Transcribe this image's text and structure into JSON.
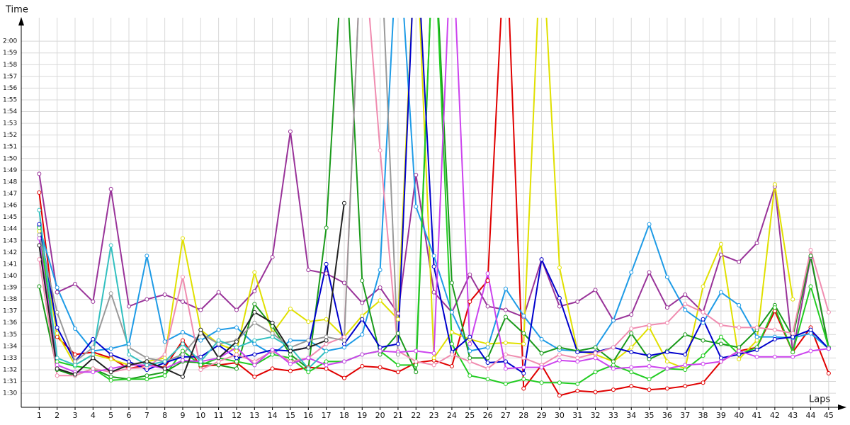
{
  "chart_data": {
    "type": "line",
    "ylabel": "Time",
    "xlabel": "Laps",
    "xlim": [
      0,
      45.4
    ],
    "ylim": [
      88.8,
      122
    ],
    "grid": true,
    "x": [
      1,
      2,
      3,
      4,
      5,
      6,
      7,
      8,
      9,
      10,
      11,
      12,
      13,
      14,
      15,
      16,
      17,
      18,
      19,
      20,
      21,
      22,
      23,
      24,
      25,
      26,
      27,
      28,
      29,
      30,
      31,
      32,
      33,
      34,
      35,
      36,
      37,
      38,
      39,
      40,
      41,
      42,
      43,
      44,
      45
    ],
    "xticks": [
      1,
      2,
      3,
      4,
      5,
      6,
      7,
      8,
      9,
      10,
      11,
      12,
      13,
      14,
      15,
      16,
      17,
      18,
      19,
      20,
      21,
      22,
      23,
      24,
      25,
      26,
      27,
      28,
      29,
      30,
      31,
      32,
      33,
      34,
      35,
      36,
      37,
      38,
      39,
      40,
      41,
      42,
      43,
      44,
      45
    ],
    "yticks": [
      {
        "value": 90,
        "label": "1:30"
      },
      {
        "value": 91,
        "label": "1:31"
      },
      {
        "value": 92,
        "label": "1:32"
      },
      {
        "value": 93,
        "label": "1:33"
      },
      {
        "value": 94,
        "label": "1:34"
      },
      {
        "value": 95,
        "label": "1:35"
      },
      {
        "value": 96,
        "label": "1:36"
      },
      {
        "value": 97,
        "label": "1:37"
      },
      {
        "value": 98,
        "label": "1:38"
      },
      {
        "value": 99,
        "label": "1:39"
      },
      {
        "value": 100,
        "label": "1:40"
      },
      {
        "value": 101,
        "label": "1:41"
      },
      {
        "value": 102,
        "label": "1:42"
      },
      {
        "value": 103,
        "label": "1:43"
      },
      {
        "value": 104,
        "label": "1:44"
      },
      {
        "value": 105,
        "label": "1:45"
      },
      {
        "value": 106,
        "label": "1:46"
      },
      {
        "value": 107,
        "label": "1:47"
      },
      {
        "value": 108,
        "label": "1:48"
      },
      {
        "value": 109,
        "label": "1:49"
      },
      {
        "value": 110,
        "label": "1:50"
      },
      {
        "value": 111,
        "label": "1:51"
      },
      {
        "value": 112,
        "label": "1:52"
      },
      {
        "value": 113,
        "label": "1:53"
      },
      {
        "value": 114,
        "label": "1:54"
      },
      {
        "value": 115,
        "label": "1:55"
      },
      {
        "value": 116,
        "label": "1:56"
      },
      {
        "value": 117,
        "label": "1:57"
      },
      {
        "value": 118,
        "label": "1:58"
      },
      {
        "value": 119,
        "label": "1:59"
      },
      {
        "value": 120,
        "label": "2:00"
      }
    ],
    "series": [
      {
        "color": "#993399",
        "values": [
          108.7,
          98.6,
          99.3,
          97.8,
          107.4,
          97.4,
          98,
          98.4,
          97.8,
          97.1,
          98.6,
          97.1,
          98.7,
          101.6,
          112.3,
          100.5,
          100.2,
          99.4,
          97.7,
          99,
          96.8,
          108.6,
          98.6,
          96.9,
          100.1,
          97.4,
          97.1,
          96.5,
          101.4,
          97.4,
          97.8,
          98.8,
          96.2,
          96.7,
          100.3,
          97.3,
          98.4,
          96.9,
          101.8,
          101.2,
          102.8,
          107.6,
          93.5,
          101.6,
          93.8
        ]
      },
      {
        "color": "#e00000",
        "values": [
          107.1,
          94.8,
          93.3,
          93.5,
          93,
          92.1,
          92.4,
          92.2,
          94.5,
          92.3,
          92.4,
          92.6,
          91.4,
          92.1,
          91.9,
          92.2,
          92.1,
          91.3,
          92.3,
          92.2,
          91.8,
          92.6,
          92.8,
          92.3,
          97.8,
          99.6,
          130,
          90.4,
          92.4,
          89.8,
          90.2,
          90.1,
          90.3,
          90.6,
          90.3,
          90.4,
          90.6,
          90.9,
          92.7,
          93.6,
          93.9,
          97,
          93.5,
          95.6,
          91.7
        ]
      },
      {
        "color": "#e0e000",
        "values": [
          103.8,
          95.1,
          92.4,
          93.3,
          92.9,
          92.4,
          92.7,
          93,
          103.2,
          95.4,
          94.2,
          93.6,
          100.3,
          95.1,
          97.2,
          96.1,
          96.3,
          94.8,
          96.6,
          97.9,
          96.3,
          130,
          93,
          95.2,
          94.6,
          94.2,
          94.3,
          94.2,
          130,
          100.7,
          93.6,
          93.3,
          92.7,
          93.9,
          95.6,
          92.7,
          92.1,
          99.1,
          102.7,
          92.9,
          94.5,
          107.8,
          98,
          null,
          null
        ]
      },
      {
        "color": "#1e9be6",
        "values": [
          104.2,
          99,
          95.5,
          93.6,
          93.8,
          94.2,
          101.7,
          94.4,
          95.2,
          94.5,
          95.4,
          95.6,
          94.2,
          93.3,
          94.5,
          94.5,
          93.6,
          93.9,
          95,
          100.5,
          130,
          105.9,
          101.7,
          96.9,
          93.6,
          93.9,
          98.9,
          96.6,
          94.6,
          93.7,
          93.6,
          93.9,
          96.2,
          100.3,
          104.4,
          99.9,
          97.1,
          96,
          98.6,
          97.5,
          94.8,
          94.8,
          94.7,
          95.1,
          93.8
        ]
      },
      {
        "color": "#1a9a1a",
        "values": [
          99.1,
          92,
          91.5,
          92.1,
          91.4,
          91.2,
          91.5,
          91.8,
          92.7,
          92.6,
          92.4,
          92.1,
          97.6,
          95.7,
          93.3,
          92.1,
          104.1,
          130,
          99.6,
          93.3,
          95.1,
          91.8,
          130,
          99.4,
          93,
          93,
          96.5,
          95.1,
          93.4,
          93.9,
          93.6,
          93.9,
          92.7,
          95.1,
          92.9,
          93.6,
          95,
          94.5,
          94.2,
          93.9,
          95.4,
          97.5,
          94.8,
          101.7,
          93.9
        ]
      },
      {
        "color": "#22cc22",
        "values": [
          104.1,
          92.7,
          92.3,
          92.1,
          91.1,
          91.2,
          91.2,
          91.5,
          93.6,
          92.4,
          93,
          92.7,
          92.4,
          93.3,
          93,
          91.8,
          92.7,
          92.7,
          93.3,
          93.6,
          92.4,
          92.4,
          130,
          94.2,
          91.5,
          91.2,
          90.8,
          91.2,
          90.9,
          90.9,
          90.8,
          91.8,
          92.4,
          91.8,
          91.2,
          92.1,
          92,
          93.2,
          94.8,
          93.3,
          93.9,
          97.3,
          93.5,
          99.1,
          93.9
        ]
      },
      {
        "color": "#0000cc",
        "values": [
          104.4,
          95.6,
          92.7,
          94.6,
          93.3,
          92.7,
          92,
          92.6,
          93.1,
          93.1,
          94.1,
          93,
          93.3,
          93.7,
          93.6,
          93.9,
          101,
          94.2,
          96.3,
          93.9,
          94.2,
          130,
          100.8,
          93.5,
          94.8,
          92.6,
          92.7,
          91.7,
          101.4,
          98.1,
          93.5,
          93.5,
          93.9,
          93.5,
          93.2,
          93.5,
          93.3,
          96.3,
          93,
          93.3,
          93.7,
          94.6,
          94.8,
          95.4,
          93.8
        ]
      },
      {
        "color": "#f08cb0",
        "values": [
          101.4,
          91.5,
          91.5,
          92.1,
          91.8,
          92.1,
          92.2,
          93.3,
          99.9,
          92,
          92.7,
          93.3,
          92.7,
          93.6,
          92.7,
          93,
          94.2,
          94.8,
          130,
          110.7,
          93.6,
          92.7,
          92.4,
          93.3,
          92.7,
          92.1,
          93.3,
          93,
          92.4,
          93.3,
          93,
          93.4,
          93.9,
          95.5,
          95.8,
          96,
          97.6,
          96.9,
          95.8,
          95.6,
          95.6,
          95.4,
          95.1,
          102.2,
          96.9
        ]
      },
      {
        "color": "#cc44ee",
        "values": [
          103.2,
          92.4,
          91.8,
          91.8,
          92.1,
          92.4,
          92.4,
          92.1,
          92.8,
          92.7,
          93,
          93.9,
          92.4,
          93.7,
          92.5,
          93,
          92.4,
          92.7,
          93.3,
          93.6,
          93.5,
          93.6,
          93.4,
          130,
          94.2,
          100.2,
          92.1,
          92.2,
          92.2,
          92.8,
          92.7,
          93,
          92.1,
          92.2,
          92.3,
          92.1,
          92.4,
          92.5,
          92.7,
          93.6,
          93.1,
          93.1,
          93.1,
          93.6,
          93.8
        ]
      },
      {
        "color": "#999999",
        "values": [
          103.5,
          96.9,
          92.7,
          93.9,
          98.5,
          93.9,
          93,
          92.7,
          93.3,
          95.1,
          94.2,
          94.5,
          96,
          95.1,
          93.9,
          94.5,
          94.8,
          94.5,
          130,
          130,
          93.3,
          null,
          null,
          null,
          null,
          null,
          null,
          null,
          null,
          null,
          null,
          null,
          null,
          null,
          null,
          null,
          null,
          null,
          null,
          null,
          null,
          null,
          null,
          null,
          null
        ]
      },
      {
        "color": "#33c0c0",
        "values": [
          105.6,
          93,
          92.4,
          93.3,
          102.6,
          93.3,
          92.4,
          92.7,
          94.2,
          92.7,
          94.5,
          93.9,
          94.5,
          94.8,
          93.9,
          92.1,
          93.6,
          null,
          null,
          null,
          null,
          null,
          null,
          null,
          null,
          null,
          null,
          null,
          null,
          null,
          null,
          null,
          null,
          null,
          null,
          null,
          null,
          null,
          null,
          null,
          null,
          null,
          null,
          null,
          null
        ]
      },
      {
        "color": "#222222",
        "values": [
          102.6,
          92.1,
          91.6,
          93,
          91.8,
          92.4,
          92.7,
          92.1,
          91.4,
          95.4,
          93,
          94.4,
          96.9,
          96,
          93.6,
          93.9,
          94.5,
          106.2,
          null,
          null,
          null,
          null,
          null,
          null,
          null,
          null,
          null,
          null,
          null,
          null,
          null,
          null,
          null,
          null,
          null,
          null,
          null,
          null,
          null,
          null,
          null,
          null,
          null,
          null,
          null
        ]
      }
    ]
  }
}
